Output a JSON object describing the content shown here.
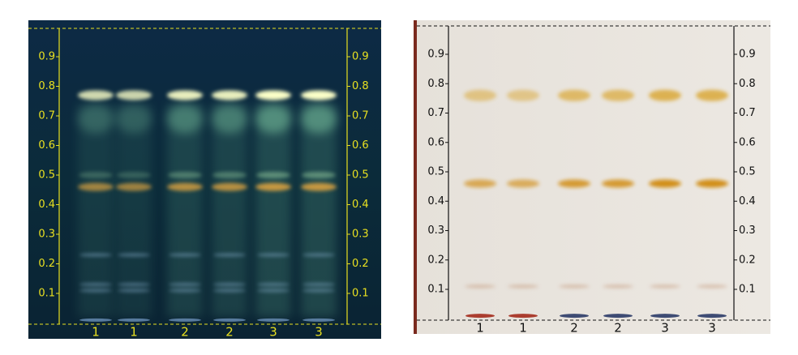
{
  "plates": [
    {
      "rf_labels": [
        "0.9",
        "0.8",
        "0.7",
        "0.6",
        "0.5",
        "0.4",
        "0.3",
        "0.2",
        "0.1"
      ],
      "lane_labels": [
        "1",
        "1",
        "2",
        "2",
        "3",
        "3"
      ]
    },
    {
      "rf_labels": [
        "0.9",
        "0.8",
        "0.7",
        "0.6",
        "0.5",
        "0.4",
        "0.3",
        "0.2",
        "0.1"
      ],
      "lane_labels": [
        "1",
        "1",
        "2",
        "2",
        "3",
        "3"
      ]
    }
  ]
}
